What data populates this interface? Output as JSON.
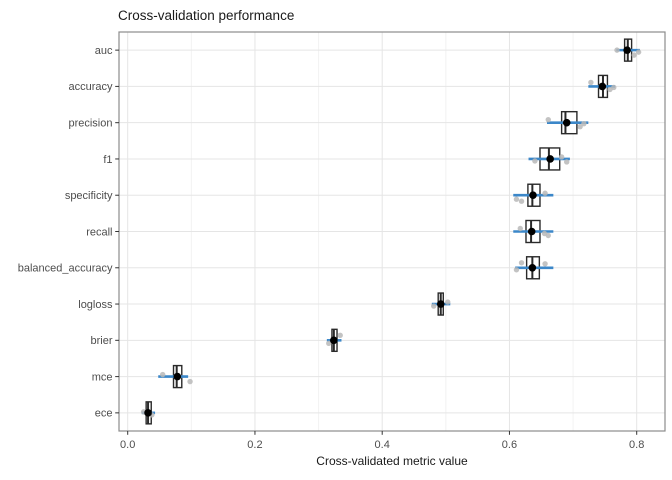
{
  "colors": {
    "accent_blue": "#3b87c9",
    "box_stroke": "#2a2a2a",
    "mean_dot": "#000000",
    "fold_point": "#b8b8b8",
    "grid_major": "#e5e5e5",
    "grid_minor": "#f2f2f2",
    "panel_border": "#8c8c8c",
    "axis_text": "#4d4d4d",
    "tick_mark": "#333333",
    "title_text": "#1a1a1a"
  },
  "chart_data": {
    "type": "boxplot",
    "orientation": "horizontal",
    "title": "Cross-validation performance",
    "xlabel": "Cross-validated metric value",
    "ylabel": "",
    "xlim": [
      0.0,
      0.845
    ],
    "grid": true,
    "legend": "none",
    "x_ticks": [
      0.0,
      0.2,
      0.4,
      0.6,
      0.8
    ],
    "x_tick_labels": [
      "0.0",
      "0.2",
      "0.4",
      "0.6",
      "0.8"
    ],
    "x_minor_ticks": [
      0.1,
      0.3,
      0.5,
      0.7
    ],
    "categories": [
      "auc",
      "accuracy",
      "precision",
      "f1",
      "specificity",
      "recall",
      "balanced_accuracy",
      "logloss",
      "brier",
      "mce",
      "ece"
    ],
    "metrics": [
      {
        "label": "auc",
        "mean": 0.785,
        "median": 0.786,
        "q1": 0.781,
        "q3": 0.792,
        "whiskers": [
          0.772,
          0.8
        ],
        "crossbar": [
          0.768,
          0.805
        ],
        "points": [
          [
            0.769,
            0
          ],
          [
            0.796,
            5
          ],
          [
            0.803,
            2
          ]
        ]
      },
      {
        "label": "accuracy",
        "mean": 0.746,
        "median": 0.747,
        "q1": 0.74,
        "q3": 0.754,
        "whiskers": [
          0.731,
          0.762
        ],
        "crossbar": [
          0.724,
          0.766
        ],
        "points": [
          [
            0.728,
            -4
          ],
          [
            0.758,
            3
          ],
          [
            0.764,
            1
          ]
        ]
      },
      {
        "label": "precision",
        "mean": 0.69,
        "median": 0.688,
        "q1": 0.682,
        "q3": 0.706,
        "whiskers": [
          0.668,
          0.714
        ],
        "crossbar": [
          0.659,
          0.724
        ],
        "points": [
          [
            0.661,
            -3
          ],
          [
            0.711,
            4
          ],
          [
            0.717,
            1
          ]
        ]
      },
      {
        "label": "f1",
        "mean": 0.664,
        "median": 0.662,
        "q1": 0.648,
        "q3": 0.679,
        "whiskers": [
          0.637,
          0.688
        ],
        "crossbar": [
          0.63,
          0.695
        ],
        "points": [
          [
            0.64,
            2
          ],
          [
            0.682,
            -2
          ],
          [
            0.69,
            3
          ]
        ]
      },
      {
        "label": "specificity",
        "mean": 0.637,
        "median": 0.636,
        "q1": 0.629,
        "q3": 0.648,
        "whiskers": [
          0.615,
          0.657
        ],
        "crossbar": [
          0.606,
          0.669
        ],
        "points": [
          [
            0.611,
            4
          ],
          [
            0.619,
            6
          ],
          [
            0.656,
            -2
          ]
        ]
      },
      {
        "label": "recall",
        "mean": 0.635,
        "median": 0.634,
        "q1": 0.626,
        "q3": 0.648,
        "whiskers": [
          0.613,
          0.658
        ],
        "crossbar": [
          0.606,
          0.669
        ],
        "points": [
          [
            0.617,
            -3
          ],
          [
            0.655,
            2
          ],
          [
            0.661,
            4
          ]
        ]
      },
      {
        "label": "balanced_accuracy",
        "mean": 0.636,
        "median": 0.636,
        "q1": 0.627,
        "q3": 0.647,
        "whiskers": [
          0.614,
          0.657
        ],
        "crossbar": [
          0.609,
          0.669
        ],
        "points": [
          [
            0.611,
            2
          ],
          [
            0.619,
            -5
          ],
          [
            0.656,
            -4
          ]
        ]
      },
      {
        "label": "logloss",
        "mean": 0.492,
        "median": 0.492,
        "q1": 0.488,
        "q3": 0.496,
        "whiskers": [
          0.481,
          0.503
        ],
        "crossbar": [
          0.478,
          0.507
        ],
        "points": [
          [
            0.481,
            2
          ],
          [
            0.503,
            -2
          ]
        ]
      },
      {
        "label": "brier",
        "mean": 0.324,
        "median": 0.324,
        "q1": 0.321,
        "q3": 0.329,
        "whiskers": [
          0.315,
          0.334
        ],
        "crossbar": [
          0.313,
          0.336
        ],
        "points": [
          [
            0.316,
            3
          ],
          [
            0.334,
            -5
          ]
        ]
      },
      {
        "label": "mce",
        "mean": 0.078,
        "median": 0.077,
        "q1": 0.072,
        "q3": 0.085,
        "whiskers": [
          0.057,
          0.094
        ],
        "crossbar": [
          0.048,
          0.095
        ],
        "points": [
          [
            0.055,
            -2
          ],
          [
            0.098,
            5
          ]
        ]
      },
      {
        "label": "ece",
        "mean": 0.032,
        "median": 0.032,
        "q1": 0.029,
        "q3": 0.037,
        "whiskers": [
          0.024,
          0.042
        ],
        "crossbar": [
          0.022,
          0.043
        ],
        "points": [
          [
            0.025,
            -1
          ],
          [
            0.038,
            2
          ]
        ]
      }
    ]
  }
}
